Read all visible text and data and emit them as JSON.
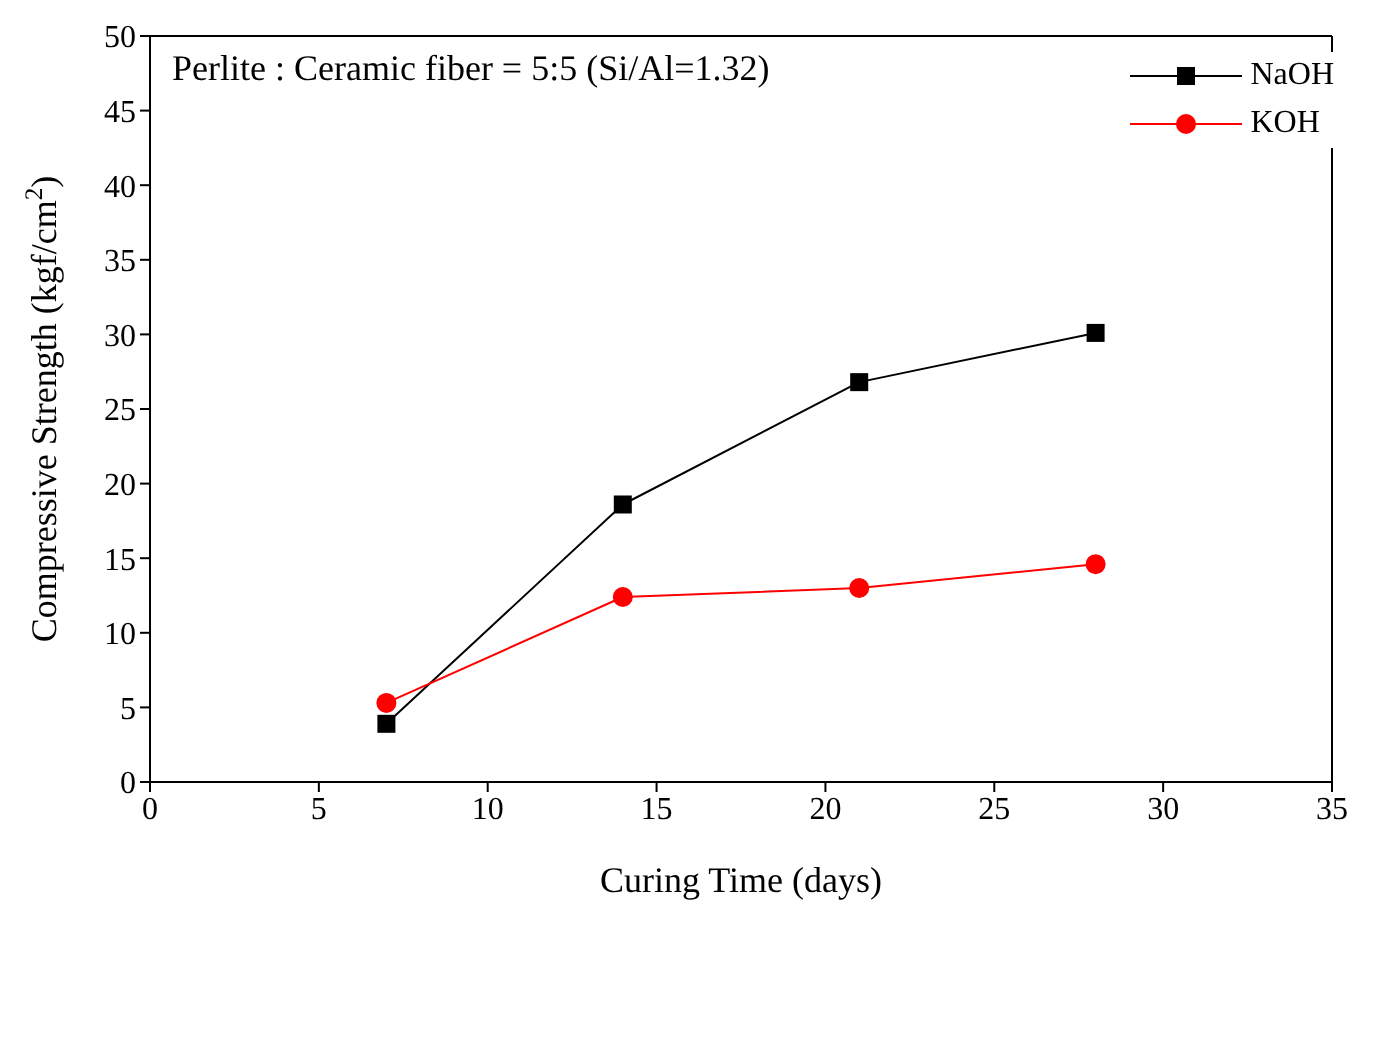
{
  "chart_data": {
    "type": "line",
    "xlabel": "Curing Time (days)",
    "ylabel": "Compressive Strength (kgf/cm$^{2}$)",
    "annotations": [
      "Perlite : Ceramic fiber = 5:5 (Si/Al=1.32)"
    ],
    "x": [
      7,
      14,
      21,
      28
    ],
    "series": [
      {
        "name": "NaOH",
        "color": "#000000",
        "marker": "square",
        "values": [
          3.9,
          18.6,
          26.8,
          30.1
        ]
      },
      {
        "name": "KOH",
        "color": "#ff0000",
        "marker": "circle",
        "values": [
          5.3,
          12.4,
          13.0,
          14.6
        ]
      }
    ],
    "xlim": [
      0,
      35
    ],
    "xticks": [
      0,
      5,
      10,
      15,
      20,
      25,
      30,
      35
    ],
    "ylim": [
      0,
      50
    ],
    "yticks": [
      0,
      5,
      10,
      15,
      20,
      25,
      30,
      35,
      40,
      45,
      50
    ],
    "grid": false,
    "legend": "top right",
    "line_style": "solid"
  }
}
